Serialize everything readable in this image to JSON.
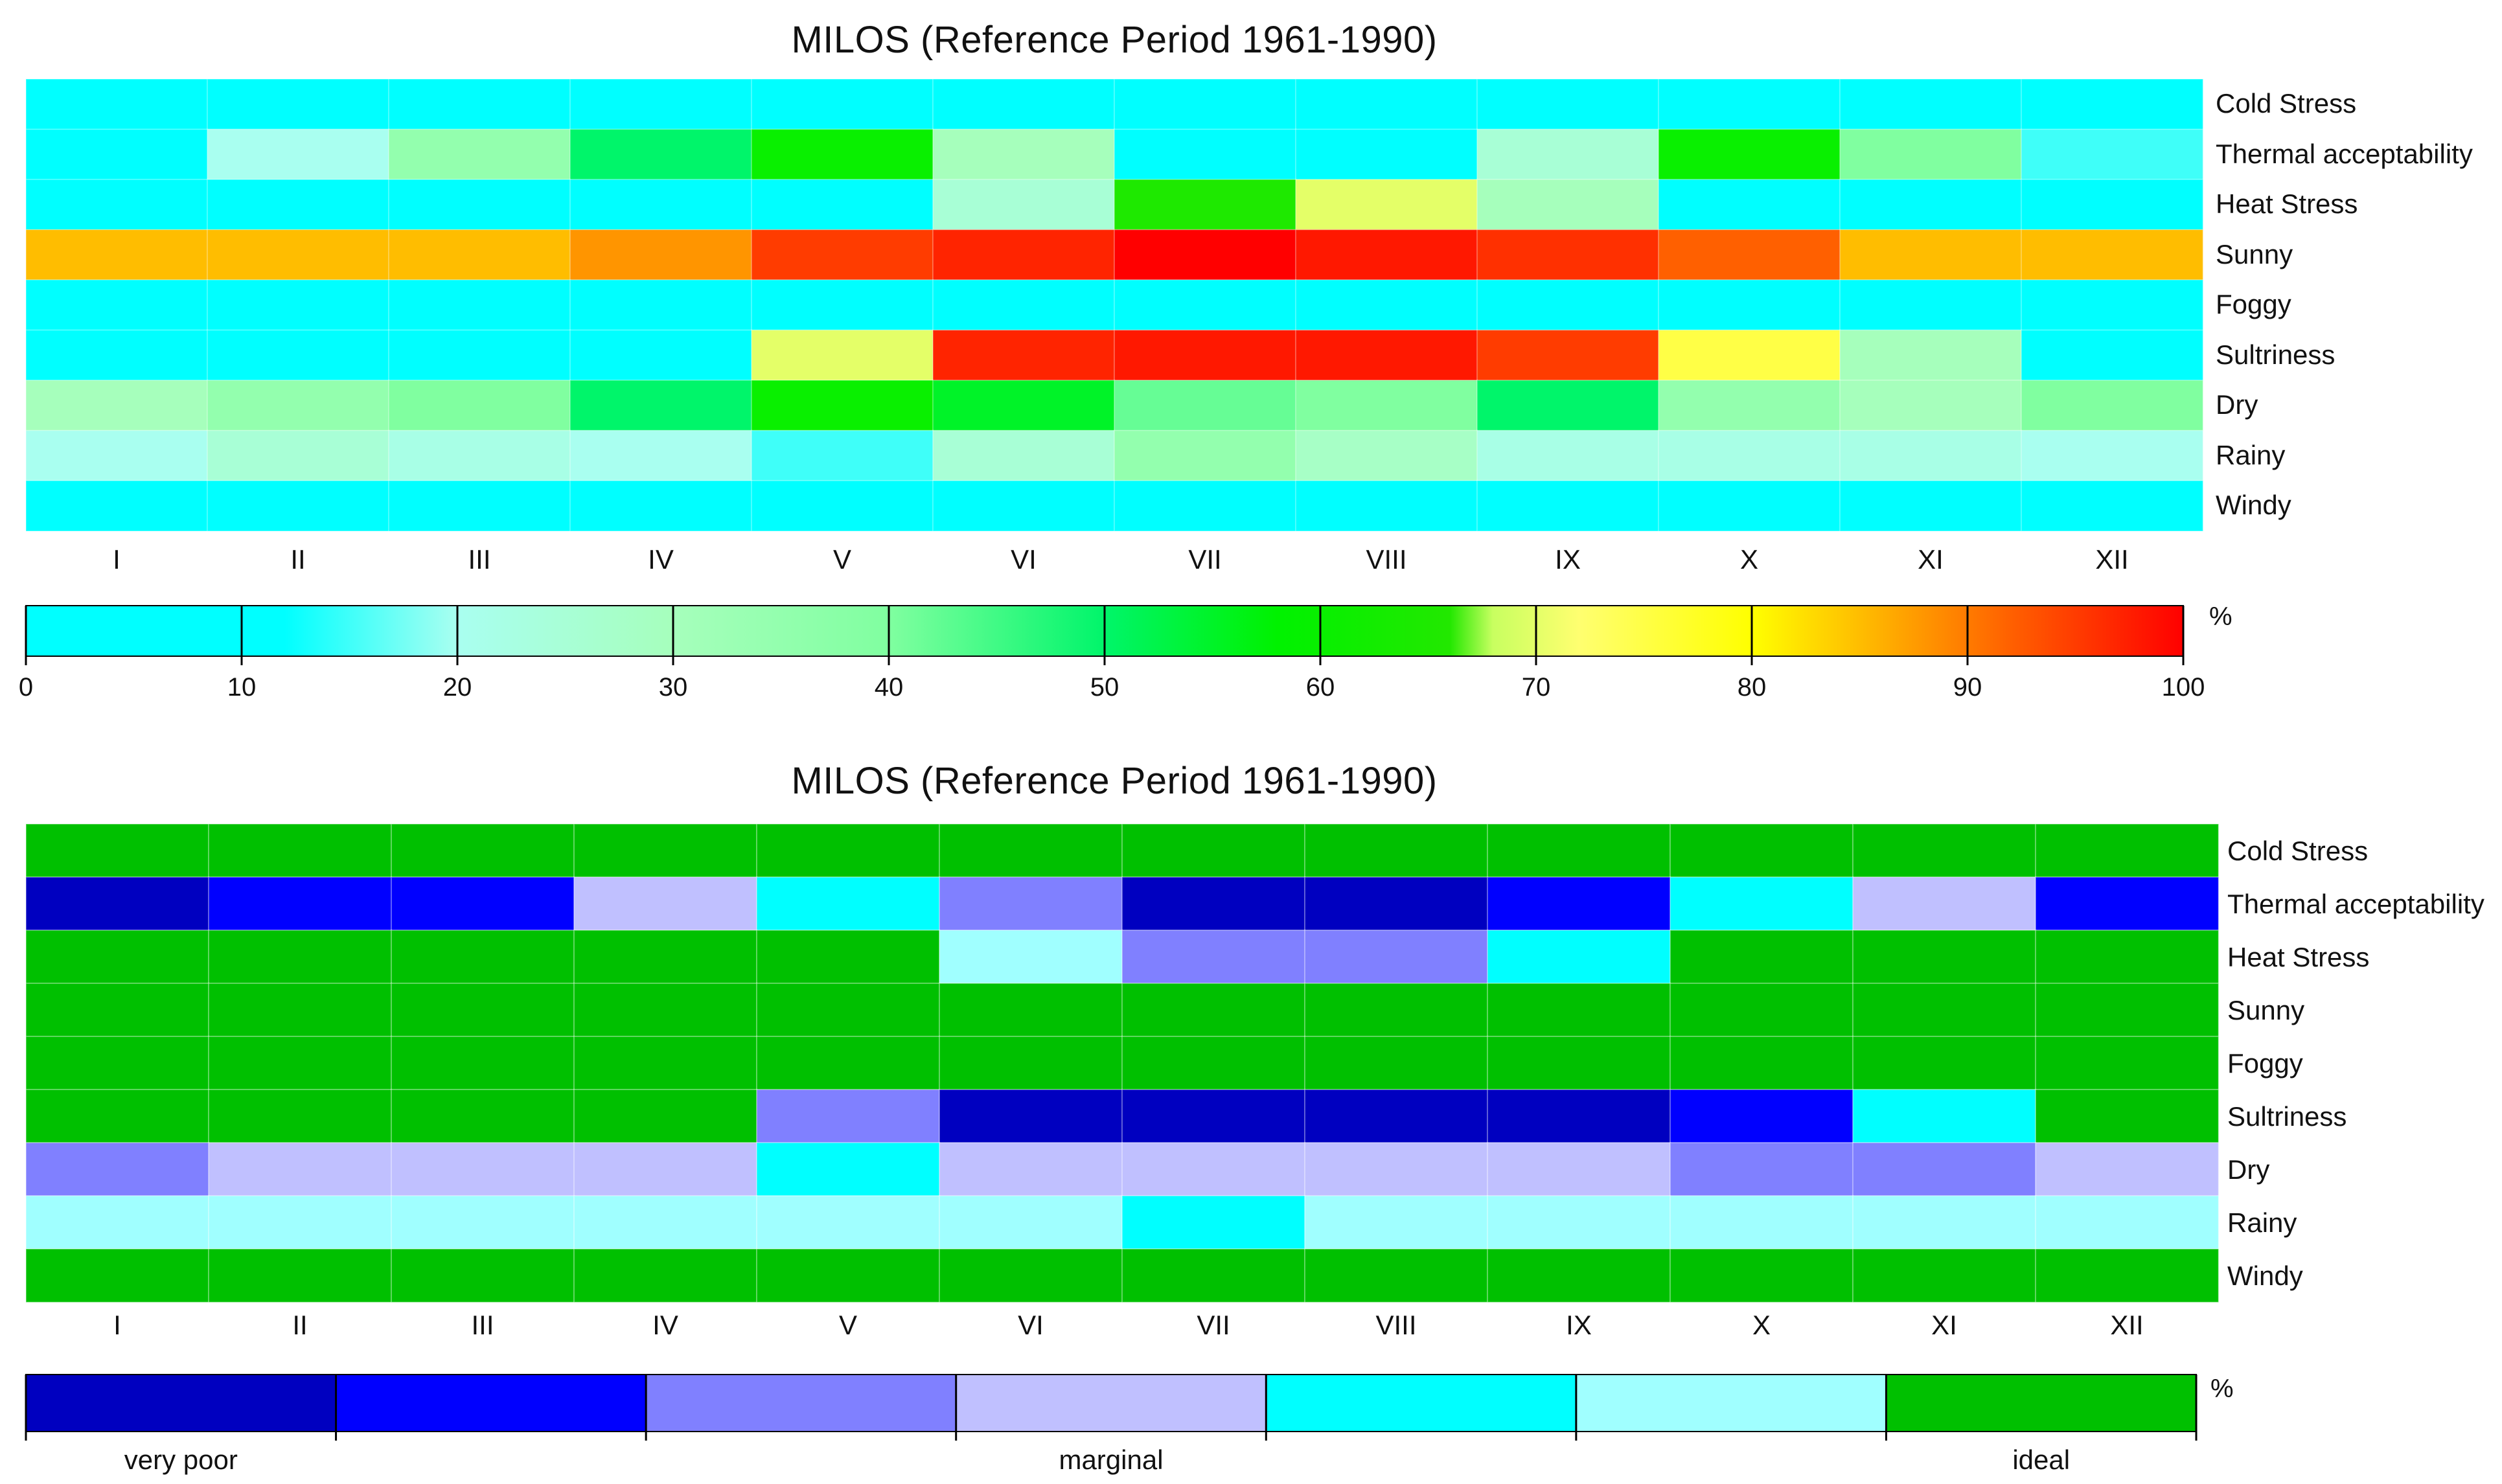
{
  "chart_data": [
    {
      "type": "heatmap",
      "title": "MILOS (Reference Period 1961-1990)",
      "months": [
        "I",
        "II",
        "III",
        "IV",
        "V",
        "VI",
        "VII",
        "VIII",
        "IX",
        "X",
        "XI",
        "XII"
      ],
      "rows": [
        "Cold Stress",
        "Thermal acceptability",
        "Heat Stress",
        "Sunny",
        "Foggy",
        "Sultriness",
        "Dry",
        "Rainy",
        "Windy"
      ],
      "values": [
        [
          0,
          0,
          0,
          0,
          0,
          0,
          0,
          0,
          0,
          0,
          0,
          0
        ],
        [
          0,
          20,
          35,
          50,
          60,
          30,
          0,
          0,
          25,
          60,
          40,
          15
        ],
        [
          0,
          0,
          0,
          0,
          0,
          25,
          65,
          70,
          30,
          0,
          0,
          0
        ],
        [
          85,
          85,
          85,
          88,
          95,
          97,
          100,
          98,
          96,
          92,
          85,
          85
        ],
        [
          0,
          0,
          0,
          0,
          0,
          0,
          0,
          0,
          0,
          0,
          0,
          0
        ],
        [
          0,
          0,
          0,
          10,
          70,
          97,
          98,
          98,
          95,
          75,
          30,
          0
        ],
        [
          30,
          35,
          40,
          50,
          60,
          55,
          42,
          40,
          50,
          35,
          30,
          40
        ],
        [
          20,
          25,
          22,
          20,
          15,
          25,
          35,
          28,
          22,
          22,
          22,
          20
        ],
        [
          0,
          0,
          0,
          0,
          0,
          0,
          0,
          0,
          0,
          0,
          0,
          0
        ]
      ],
      "colorbar": {
        "min": 0,
        "max": 100,
        "unit": "%",
        "ticks": [
          0,
          10,
          20,
          30,
          40,
          50,
          60,
          70,
          80,
          90,
          100
        ],
        "stops": [
          {
            "value": 0,
            "color": "#00ffff"
          },
          {
            "value": 12,
            "color": "#00ffff"
          },
          {
            "value": 20,
            "color": "#a9fff0"
          },
          {
            "value": 30,
            "color": "#a6ffbc"
          },
          {
            "value": 40,
            "color": "#80ffa0"
          },
          {
            "value": 50,
            "color": "#00f56a"
          },
          {
            "value": 58,
            "color": "#00f200"
          },
          {
            "value": 66,
            "color": "#22e800"
          },
          {
            "value": 68,
            "color": "#c8ff60"
          },
          {
            "value": 72,
            "color": "#ffff70"
          },
          {
            "value": 80,
            "color": "#ffff00"
          },
          {
            "value": 86,
            "color": "#ffb000"
          },
          {
            "value": 92,
            "color": "#ff6000"
          },
          {
            "value": 100,
            "color": "#ff0000"
          }
        ]
      }
    },
    {
      "type": "heatmap",
      "title": "MILOS (Reference Period 1961-1990)",
      "months": [
        "I",
        "II",
        "III",
        "IV",
        "V",
        "VI",
        "VII",
        "VIII",
        "IX",
        "X",
        "XI",
        "XII"
      ],
      "rows": [
        "Cold Stress",
        "Thermal acceptability",
        "Heat Stress",
        "Sunny",
        "Foggy",
        "Sultriness",
        "Dry",
        "Rainy",
        "Windy"
      ],
      "classes": [
        [
          6,
          6,
          6,
          6,
          6,
          6,
          6,
          6,
          6,
          6,
          6,
          6
        ],
        [
          0,
          1,
          1,
          3,
          4,
          2,
          0,
          0,
          1,
          4,
          3,
          1
        ],
        [
          6,
          6,
          6,
          6,
          6,
          5,
          2,
          2,
          4,
          6,
          6,
          6
        ],
        [
          6,
          6,
          6,
          6,
          6,
          6,
          6,
          6,
          6,
          6,
          6,
          6
        ],
        [
          6,
          6,
          6,
          6,
          6,
          6,
          6,
          6,
          6,
          6,
          6,
          6
        ],
        [
          6,
          6,
          6,
          6,
          2,
          0,
          0,
          0,
          0,
          1,
          4,
          6
        ],
        [
          2,
          3,
          3,
          3,
          4,
          3,
          3,
          3,
          3,
          2,
          2,
          3
        ],
        [
          5,
          5,
          5,
          5,
          5,
          5,
          4,
          5,
          5,
          5,
          5,
          5
        ],
        [
          6,
          6,
          6,
          6,
          6,
          6,
          6,
          6,
          6,
          6,
          6,
          6
        ]
      ],
      "legend": {
        "unit": "%",
        "class_colors": [
          "#0000c0",
          "#0000ff",
          "#8080ff",
          "#c0c0ff",
          "#00ffff",
          "#a0ffff",
          "#00c000"
        ],
        "labels": [
          {
            "text": "very poor",
            "class": 0
          },
          {
            "text": "marginal",
            "class": 3
          },
          {
            "text": "ideal",
            "class": 6
          }
        ]
      }
    }
  ]
}
